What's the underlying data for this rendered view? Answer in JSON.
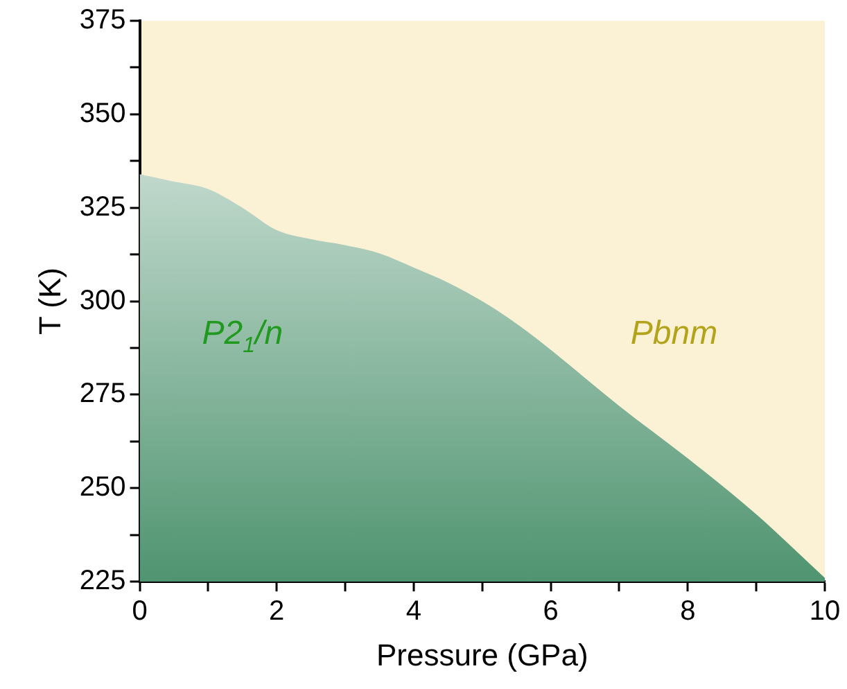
{
  "chart_data": {
    "type": "area",
    "xlabel": "Pressure (GPa)",
    "ylabel": "T (K)",
    "x": [
      0,
      0.5,
      1,
      1.5,
      2,
      2.5,
      3,
      3.5,
      4,
      4.5,
      5,
      5.5,
      6,
      7,
      8,
      9,
      10
    ],
    "series": [
      {
        "color": "#4f9470",
        "values": [
          334,
          332,
          330,
          325,
          319,
          316.6,
          315,
          312.8,
          309,
          305,
          300,
          294,
          287,
          272,
          258,
          243,
          226
        ]
      }
    ],
    "xlim": [
      0,
      10
    ],
    "ylim": [
      225,
      375
    ],
    "xticks": [
      0,
      {
        "value": 1,
        "label": null
      },
      2,
      {
        "value": 3,
        "label": null
      },
      4,
      {
        "value": 5,
        "label": null
      },
      6,
      {
        "value": 7,
        "label": null
      },
      8,
      {
        "value": 9,
        "label": null
      },
      10
    ],
    "yticks": [
      225,
      {
        "value": 237.5,
        "label": null
      },
      250,
      {
        "value": 262.5,
        "label": null
      },
      275,
      {
        "value": 287.5,
        "label": null
      },
      300,
      {
        "value": 312.5,
        "label": null
      },
      325,
      {
        "value": 337.5,
        "label": null
      },
      350,
      {
        "value": 362.5,
        "label": null
      },
      375
    ],
    "grid": false,
    "legend": false,
    "annotations": [
      "P2$_{1}$/n",
      "Pbnm"
    ]
  }
}
